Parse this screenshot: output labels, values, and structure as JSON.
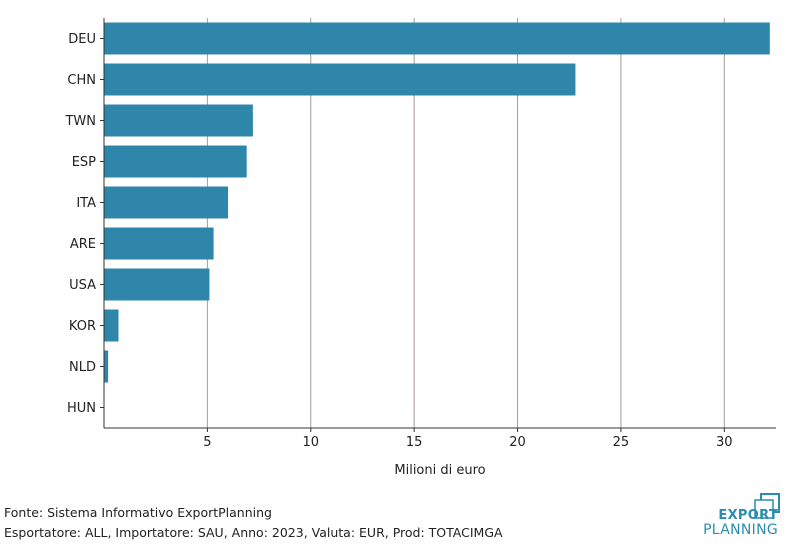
{
  "chart_data": {
    "type": "bar",
    "orientation": "horizontal",
    "categories": [
      "DEU",
      "CHN",
      "TWN",
      "ESP",
      "ITA",
      "ARE",
      "USA",
      "KOR",
      "NLD",
      "HUN"
    ],
    "values": [
      32.2,
      22.8,
      7.2,
      6.9,
      6.0,
      5.3,
      5.1,
      0.7,
      0.2,
      0.0
    ],
    "title": "",
    "xlabel": "Milioni di euro",
    "ylabel": "",
    "xticks": [
      5,
      10,
      15,
      20,
      25,
      30
    ],
    "xlim": [
      0,
      32.5
    ],
    "grid": "vertical",
    "bar_color": "#2e86ab",
    "grid_color": "#a89a9a"
  },
  "footer": {
    "source": "Fonte: Sistema Informativo ExportPlanning",
    "meta": "Esportatore: ALL, Importatore: SAU, Anno: 2023, Valuta: EUR, Prod: TOTACIMGA"
  },
  "logo": {
    "line1": "EXPORT",
    "line2": "PLANNING",
    "color": "#2a8db0"
  }
}
